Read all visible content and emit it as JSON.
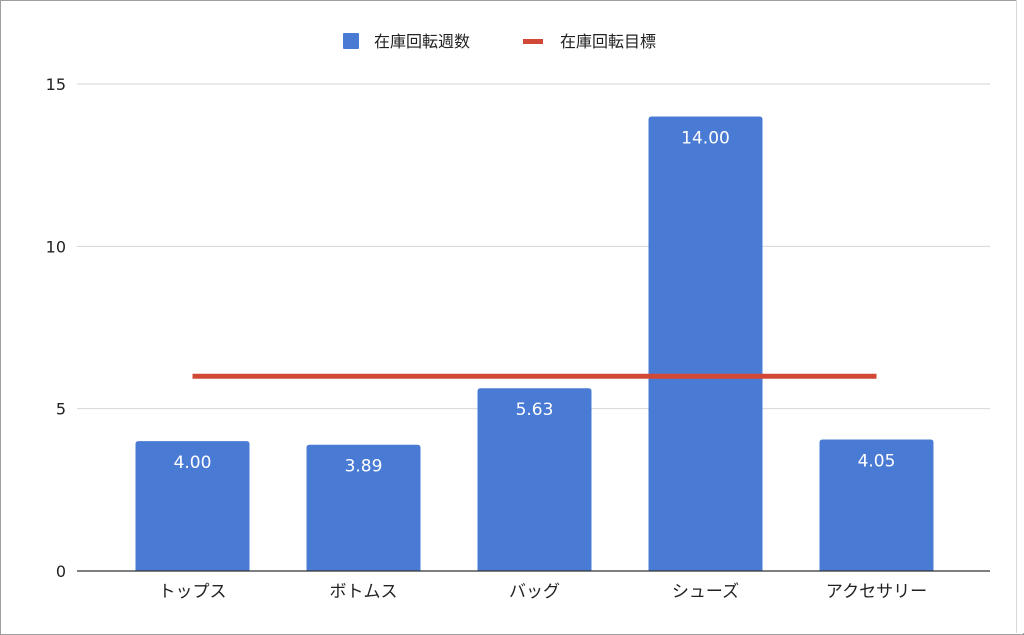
{
  "chart_data": {
    "type": "bar",
    "title": "",
    "xlabel": "",
    "ylabel": "",
    "categories": [
      "トップス",
      "ボトムス",
      "バッグ",
      "シューズ",
      "アクセサリー"
    ],
    "series": [
      {
        "name": "在庫回転週数",
        "type": "bar",
        "values": [
          4.0,
          3.89,
          5.63,
          14.0,
          4.05
        ],
        "data_labels": [
          "4.00",
          "3.89",
          "5.63",
          "14.00",
          "4.05"
        ],
        "color": "#4a7bd4"
      },
      {
        "name": "在庫回転目標",
        "type": "line",
        "values": [
          6,
          6,
          6,
          6,
          6
        ],
        "color": "#d14836"
      }
    ],
    "ylim": [
      0,
      15
    ],
    "yticks": [
      "0",
      "5",
      "10",
      "15"
    ],
    "grid": true,
    "legend_position": "top"
  }
}
